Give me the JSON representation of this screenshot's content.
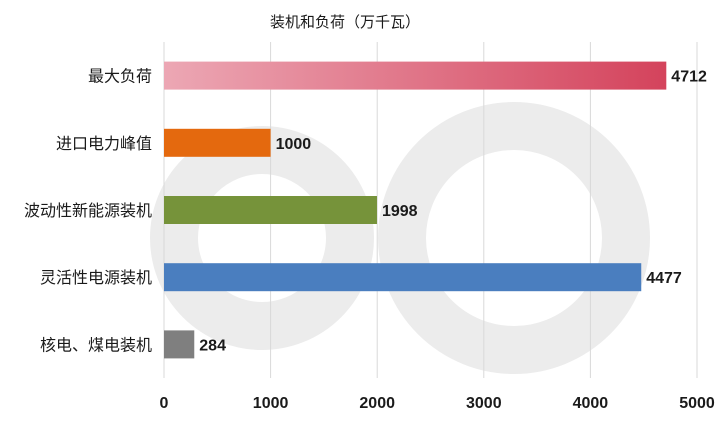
{
  "chart_data": {
    "type": "bar",
    "orientation": "horizontal",
    "title": "装机和负荷（万千瓦）",
    "categories": [
      "最大负荷",
      "进口电力峰值",
      "波动性新能源装机",
      "灵活性电源装机",
      "核电、煤电装机"
    ],
    "values": [
      4712,
      1000,
      1998,
      4477,
      284
    ],
    "xlim": [
      0,
      5000
    ],
    "xticks": [
      0,
      1000,
      2000,
      3000,
      4000,
      5000
    ],
    "grid": "vertical",
    "bar_colors": [
      {
        "from": "#eca7b4",
        "to": "#d4435c"
      },
      {
        "from": "#e4690e",
        "to": "#e4690e"
      },
      {
        "from": "#76933a",
        "to": "#76933a"
      },
      {
        "from": "#4a7ebf",
        "to": "#4a7ebf"
      },
      {
        "from": "#7f7f7f",
        "to": "#7f7f7f"
      }
    ]
  }
}
